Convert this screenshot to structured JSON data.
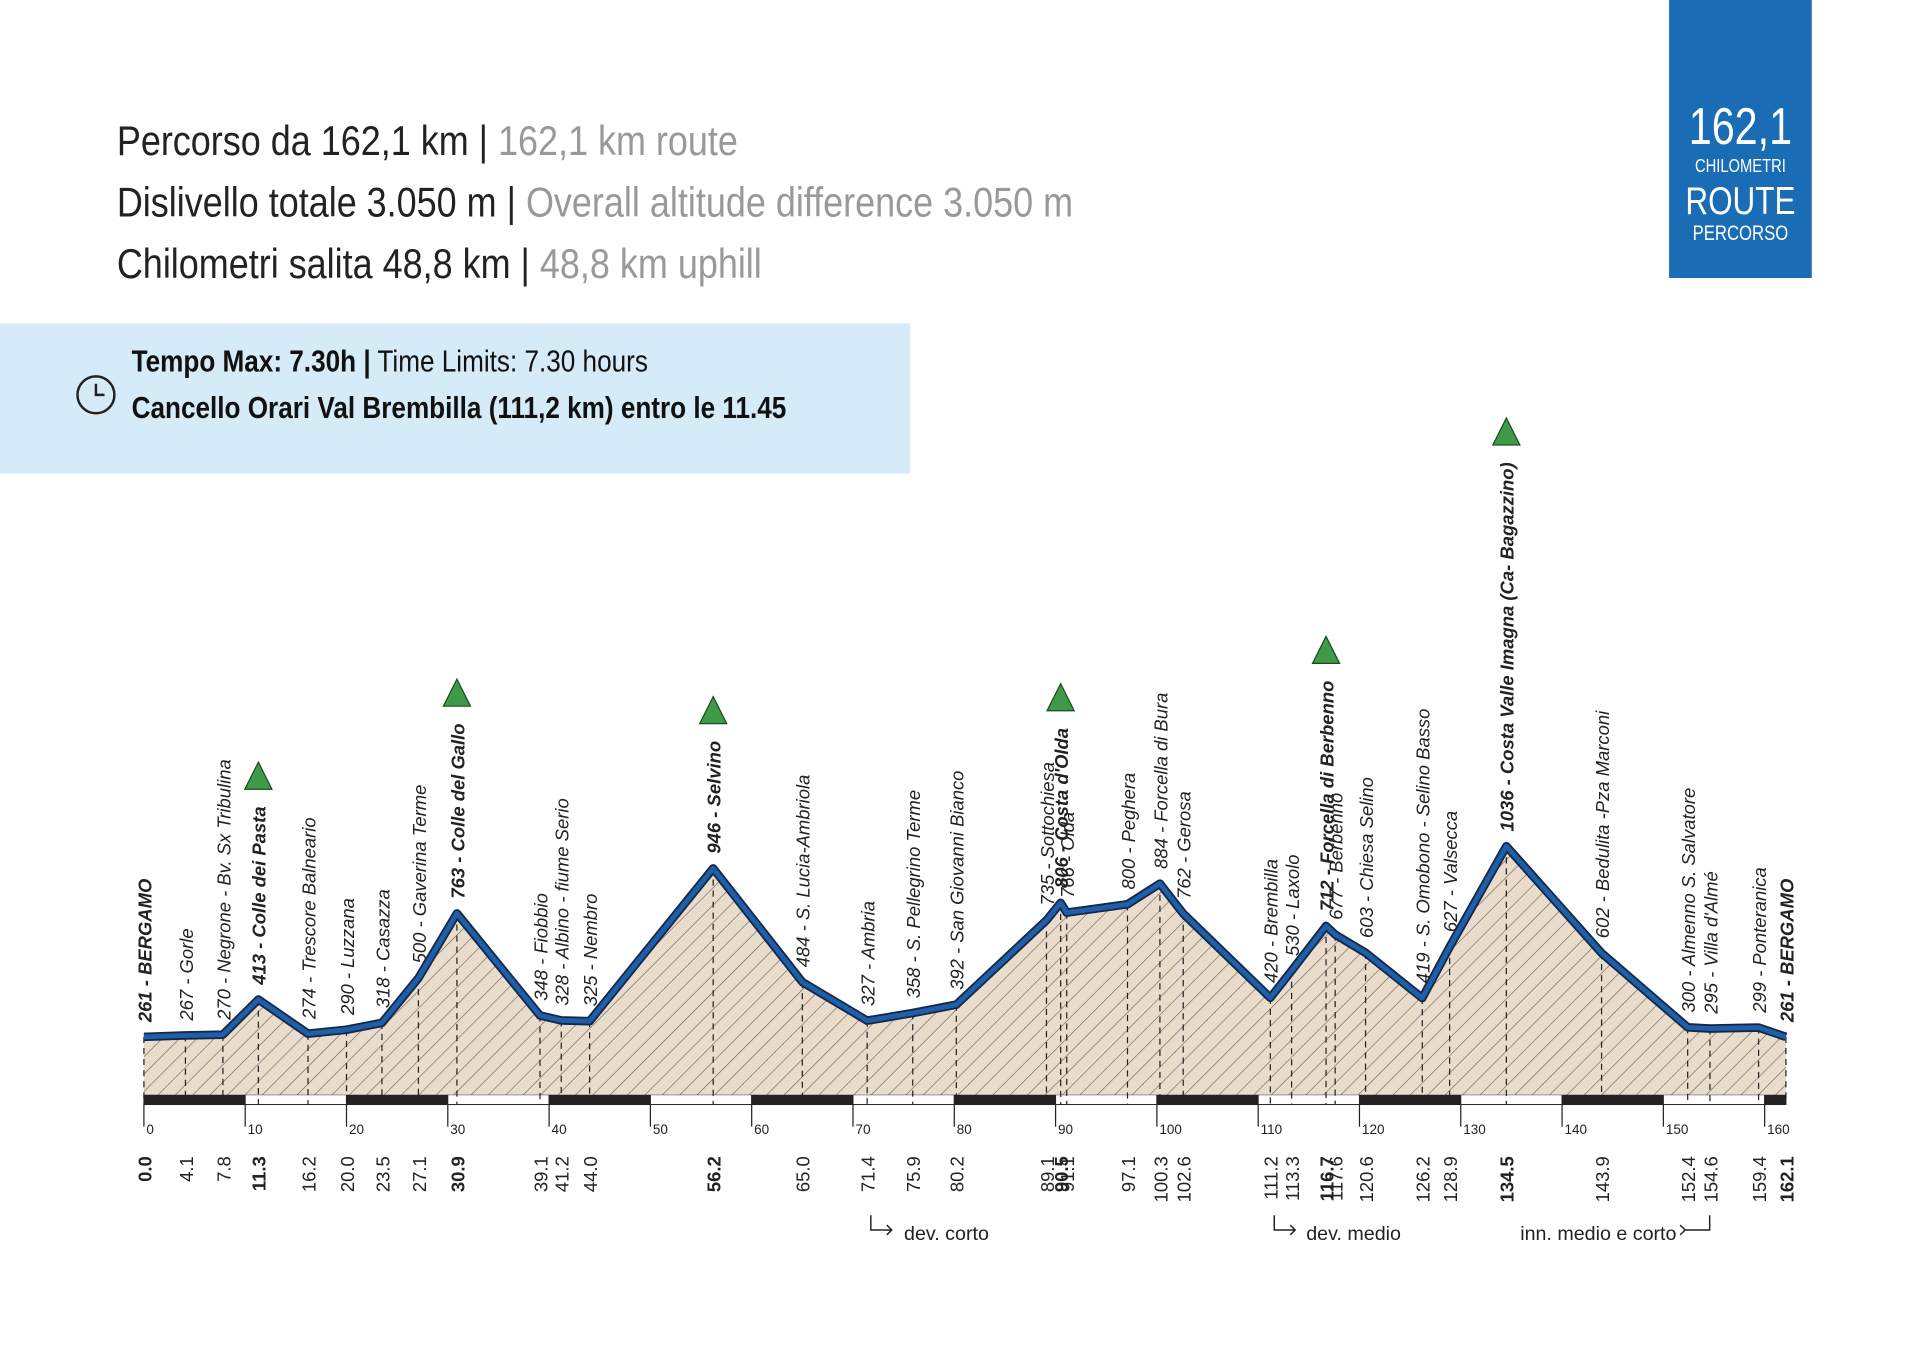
{
  "header": {
    "lines": [
      {
        "it": "Percorso da 162,1 km |",
        "en": " 162,1 km route"
      },
      {
        "it": "Dislivello totale 3.050 m |",
        "en": " Overall altitude difference 3.050 m"
      },
      {
        "it": "Chilometri salita 48,8 km |",
        "en": " 48,8 km uphill"
      }
    ]
  },
  "badge": {
    "number": "162,1",
    "top": "CHILOMETRI",
    "mid": "ROUTE",
    "bottom": "PERCORSO"
  },
  "time_box": {
    "line1_bold": "Tempo Max: 7.30h |",
    "line1_rest": " Time Limits: 7.30 hours",
    "line2": "Cancello Orari Val Brembilla (111,2 km) entro le 11.45"
  },
  "chart_data": {
    "type": "area",
    "x": [
      0,
      4.1,
      7.8,
      11.3,
      16.2,
      20.0,
      23.5,
      27.1,
      30.9,
      39.1,
      41.2,
      44.0,
      56.2,
      65.0,
      71.4,
      75.9,
      80.2,
      89.1,
      90.5,
      91.1,
      97.1,
      100.3,
      102.6,
      111.2,
      113.3,
      116.7,
      117.6,
      120.6,
      126.2,
      128.9,
      134.5,
      143.9,
      152.4,
      154.6,
      159.4,
      162.1
    ],
    "x_labels": [
      "0.0",
      "4.1",
      "7.8",
      "11.3",
      "16.2",
      "20.0",
      "23.5",
      "27.1",
      "30.9",
      "39.1",
      "41.2",
      "44.0",
      "56.2",
      "65.0",
      "71.4",
      "75.9",
      "80.2",
      "89.1",
      "90.5",
      "91.1",
      "97.1",
      "100.3",
      "102.6",
      "111.2",
      "113.3",
      "116.7",
      "117.6",
      "120.6",
      "126.2",
      "128.9",
      "134.5",
      "143.9",
      "152.4",
      "154.6",
      "159.4",
      "162.1"
    ],
    "values": [
      261,
      267,
      270,
      413,
      274,
      290,
      318,
      500,
      763,
      348,
      328,
      325,
      946,
      484,
      327,
      358,
      392,
      735,
      806,
      766,
      800,
      884,
      762,
      420,
      530,
      712,
      677,
      603,
      419,
      627,
      1036,
      602,
      300,
      295,
      299,
      261
    ],
    "value_labels": [
      "261 - BERGAMO",
      "267 - Gorle",
      "270 - Negrone - Bv. Sx Tribulina",
      "413 - Colle dei Pasta",
      "274 - Trescore Balneario",
      "290 - Luzzana",
      "318 - Casazza",
      "500 - Gaverina Terme",
      "763 - Colle del Gallo",
      "348 - Fiobbio",
      "328 - Albino - fiume Serio",
      "325 - Nembro",
      "946 - Selvino",
      "484 - S. Lucia-Ambriola",
      "327 - Ambria",
      "358 - S. Pellegrino Terme",
      "392 - San Giovanni Bianco",
      "735 - Sottochiesa",
      "806 - Costa d'Olda",
      "766 - Olda",
      "800 - Peghera",
      "884 - Forcella di Bura",
      "762 - Gerosa",
      "420 - Brembilla",
      "530 - Laxolo",
      "712 - Forcella di Berbenno",
      "677 - Berbenno",
      "603 - Chiesa Selino",
      "419 - S. Omobono - Selino Basso",
      "627 - Valsecca",
      "1036 - Costa Valle Imagna (Ca- Bagazzino)",
      "602 - Bedulita -Pza Marconi",
      "300 - Almenno S. Salvatore",
      "295 - Villa d'Almé",
      "299 - Ponteranica",
      "261 - BERGAMO"
    ],
    "emphasis": [
      true,
      false,
      false,
      true,
      false,
      false,
      false,
      false,
      true,
      false,
      false,
      false,
      true,
      false,
      false,
      false,
      false,
      false,
      true,
      false,
      false,
      false,
      false,
      false,
      false,
      true,
      false,
      false,
      false,
      false,
      true,
      false,
      false,
      false,
      false,
      true
    ],
    "summit": [
      false,
      false,
      false,
      true,
      false,
      false,
      false,
      false,
      true,
      false,
      false,
      false,
      true,
      false,
      false,
      false,
      false,
      false,
      true,
      false,
      false,
      false,
      false,
      false,
      false,
      true,
      false,
      false,
      false,
      false,
      true,
      false,
      false,
      false,
      false,
      false
    ],
    "color": "#1f5fa8",
    "xlim": [
      0,
      162.1
    ],
    "xticks": [
      0,
      10,
      20,
      30,
      40,
      50,
      60,
      70,
      80,
      90,
      100,
      110,
      120,
      130,
      140,
      150,
      160
    ],
    "annotations": [
      "dev. corto",
      "dev. medio",
      "inn. medio e corto"
    ]
  }
}
